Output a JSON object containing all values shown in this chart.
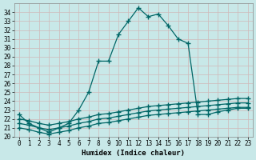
{
  "title": "",
  "xlabel": "Humidex (Indice chaleur)",
  "ylabel": "",
  "bg_color": "#c8e8e8",
  "grid_color": "#b8d8d8",
  "line_color": "#006666",
  "xlim": [
    -0.5,
    23.5
  ],
  "ylim": [
    20,
    35
  ],
  "yticks": [
    20,
    21,
    22,
    23,
    24,
    25,
    26,
    27,
    28,
    29,
    30,
    31,
    32,
    33,
    34
  ],
  "xticks": [
    0,
    1,
    2,
    3,
    4,
    5,
    6,
    7,
    8,
    9,
    10,
    11,
    12,
    13,
    14,
    15,
    16,
    17,
    18,
    19,
    20,
    21,
    22,
    23
  ],
  "curve1_x": [
    0,
    1,
    2,
    3,
    4,
    5,
    6,
    7,
    8,
    9,
    10,
    11,
    12,
    13,
    14,
    15,
    16,
    17,
    18,
    19,
    20,
    21,
    22,
    23
  ],
  "curve1_y": [
    22.5,
    21.5,
    21.0,
    20.5,
    21.0,
    21.5,
    23.0,
    25.0,
    28.5,
    28.5,
    31.5,
    33.0,
    34.5,
    33.5,
    33.8,
    32.5,
    31.0,
    30.5,
    22.5,
    22.5,
    22.8,
    23.0,
    23.2,
    23.2
  ],
  "curve2_x": [
    0,
    1,
    2,
    3,
    4,
    5,
    6,
    7,
    8,
    9,
    10,
    11,
    12,
    13,
    14,
    15,
    16,
    17,
    18,
    19,
    20,
    21,
    22,
    23
  ],
  "curve2_y": [
    21.0,
    20.8,
    20.5,
    20.3,
    20.5,
    20.7,
    21.0,
    21.2,
    21.5,
    21.6,
    21.8,
    22.0,
    22.2,
    22.4,
    22.5,
    22.6,
    22.7,
    22.8,
    22.9,
    23.0,
    23.1,
    23.2,
    23.3,
    23.3
  ],
  "curve3_x": [
    0,
    1,
    2,
    3,
    4,
    5,
    6,
    7,
    8,
    9,
    10,
    11,
    12,
    13,
    14,
    15,
    16,
    17,
    18,
    19,
    20,
    21,
    22,
    23
  ],
  "curve3_y": [
    21.5,
    21.3,
    21.0,
    20.8,
    21.0,
    21.2,
    21.5,
    21.7,
    22.0,
    22.1,
    22.3,
    22.5,
    22.7,
    22.9,
    23.0,
    23.1,
    23.2,
    23.3,
    23.4,
    23.5,
    23.6,
    23.7,
    23.8,
    23.8
  ],
  "curve4_x": [
    0,
    1,
    2,
    3,
    4,
    5,
    6,
    7,
    8,
    9,
    10,
    11,
    12,
    13,
    14,
    15,
    16,
    17,
    18,
    19,
    20,
    21,
    22,
    23
  ],
  "curve4_y": [
    22.0,
    21.8,
    21.5,
    21.3,
    21.5,
    21.7,
    22.0,
    22.2,
    22.5,
    22.6,
    22.8,
    23.0,
    23.2,
    23.4,
    23.5,
    23.6,
    23.7,
    23.8,
    23.9,
    24.0,
    24.1,
    24.2,
    24.3,
    24.3
  ],
  "marker": "+",
  "markersize": 4,
  "linewidth": 0.9,
  "tick_fontsize": 5.5,
  "xlabel_fontsize": 6.5
}
